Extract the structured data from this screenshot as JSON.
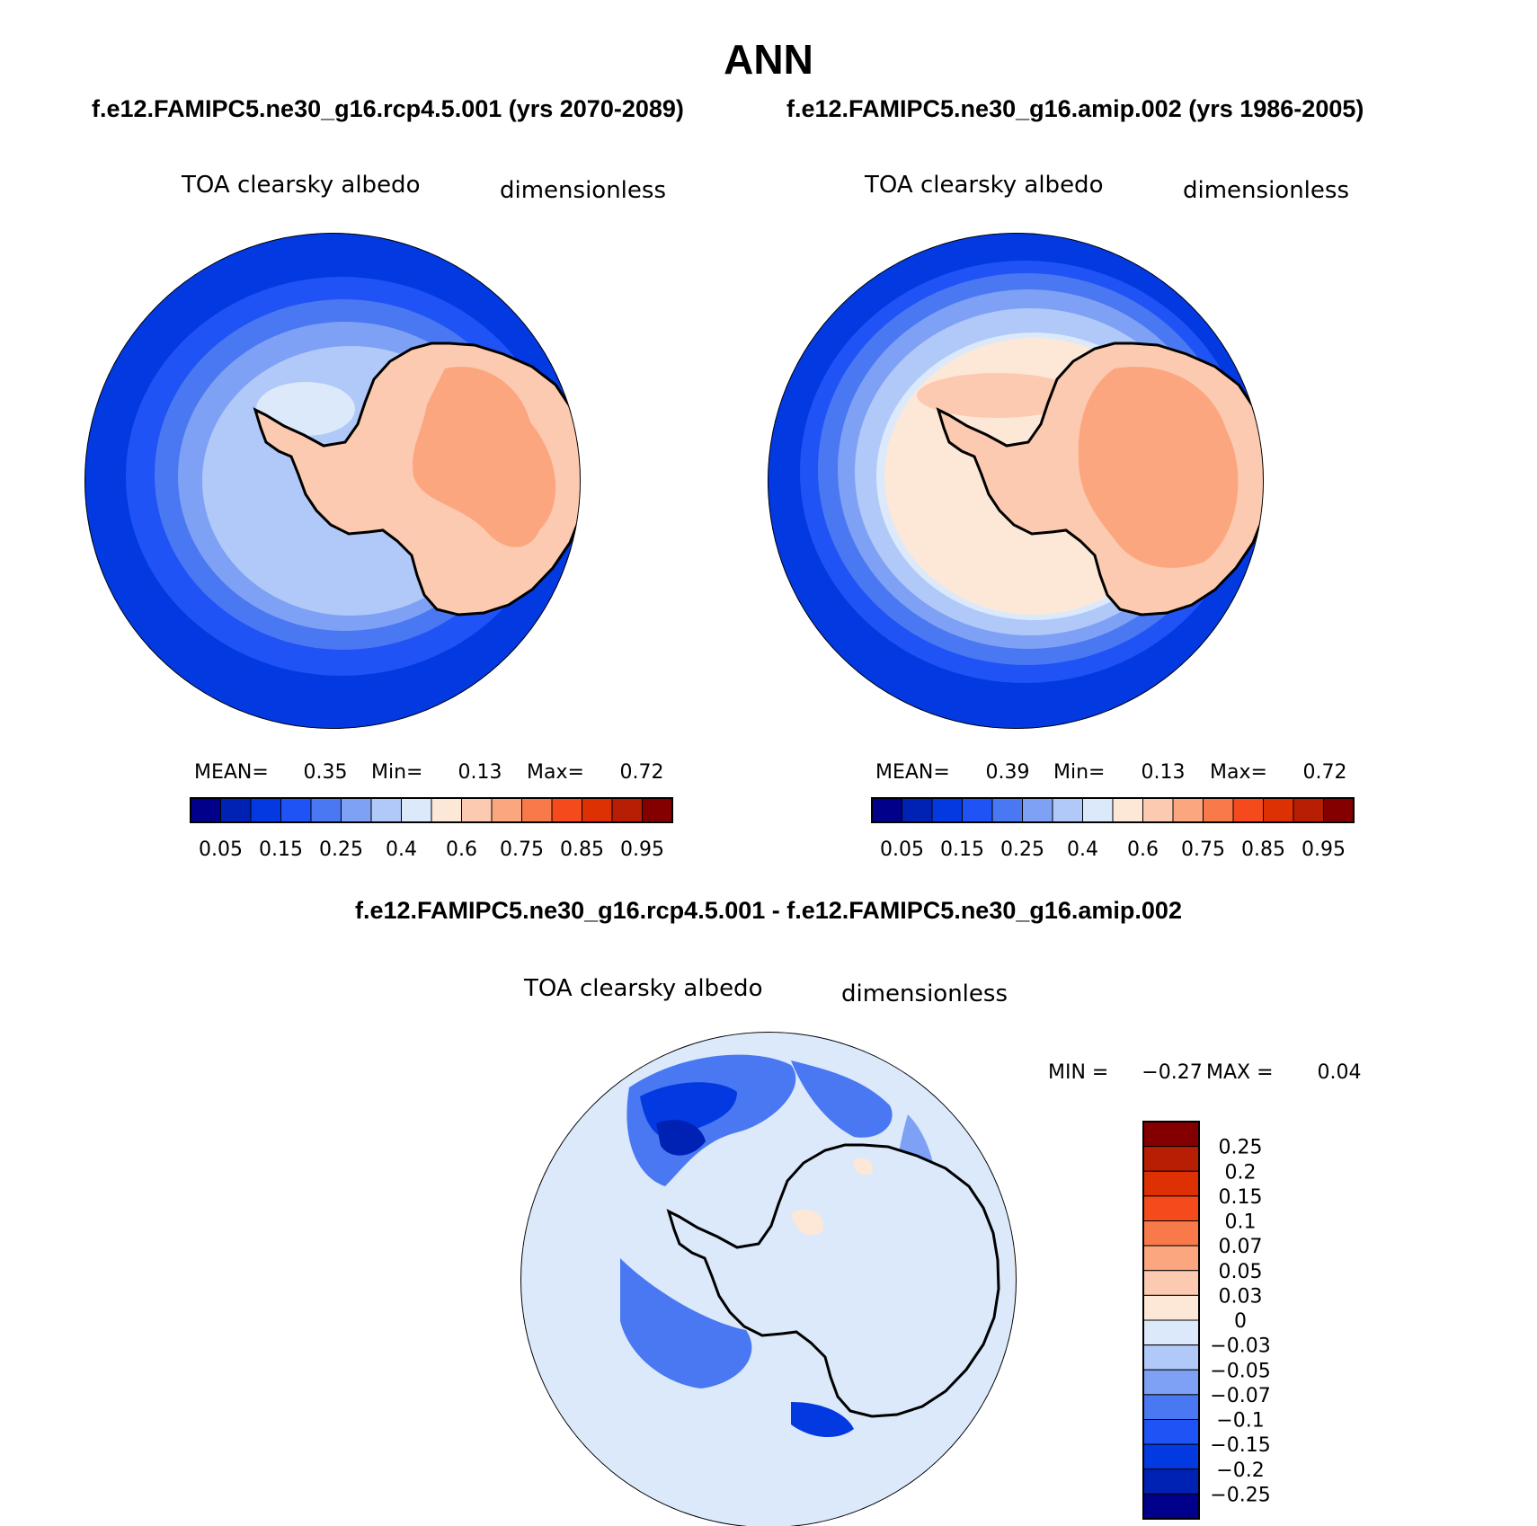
{
  "title": "ANN",
  "case_title": "f.e12.FAMIPC5.ne30_g16.rcp4.5.001 (yrs 2070-2089)",
  "control_title": "f.e12.FAMIPC5.ne30_g16.amip.002 (yrs 1986-2005)",
  "diff_title": "f.e12.FAMIPC5.ne30_g16.rcp4.5.001 - f.e12.FAMIPC5.ne30_g16.amip.002",
  "variable": "TOA clearsky albedo",
  "units": "dimensionless",
  "panels": [
    {
      "id": "case",
      "stats": {
        "mean_label": "MEAN=",
        "mean": "0.35",
        "min_label": "Min=",
        "min": "0.13",
        "max_label": "Max=",
        "max": "0.72"
      }
    },
    {
      "id": "control",
      "stats": {
        "mean_label": "MEAN=",
        "mean": "0.39",
        "min_label": "Min=",
        "min": "0.13",
        "max_label": "Max=",
        "max": "0.72"
      }
    },
    {
      "id": "diff",
      "stats": {
        "min_label": "MIN =",
        "min": "−0.27",
        "max_label": "MAX =",
        "max": "0.04"
      }
    }
  ],
  "colorbar_abs": {
    "colors": [
      "#00008b",
      "#0022b4",
      "#0339e0",
      "#1f53f5",
      "#4a78f2",
      "#7ea1f5",
      "#b1c9f8",
      "#dbe9fb",
      "#fde8d8",
      "#fccab0",
      "#fba67e",
      "#f87a4b",
      "#f54a1c",
      "#dd3104",
      "#b81e04",
      "#840000"
    ],
    "labels": [
      "0.05",
      "0.15",
      "0.25",
      "0.4",
      "0.6",
      "0.75",
      "0.85",
      "0.95"
    ]
  },
  "colorbar_diff": {
    "colors": [
      "#840000",
      "#b81e04",
      "#dd3104",
      "#f54a1c",
      "#f87a4b",
      "#fba67e",
      "#fccab0",
      "#fde8d8",
      "#dbe9fb",
      "#b1c9f8",
      "#7ea1f5",
      "#4a78f2",
      "#1f53f5",
      "#0339e0",
      "#0022b4",
      "#00008b"
    ],
    "labels": [
      "0.25",
      "0.2",
      "0.15",
      "0.1",
      "0.07",
      "0.05",
      "0.03",
      "0",
      "−0.03",
      "−0.05",
      "−0.07",
      "−0.1",
      "−0.15",
      "−0.2",
      "−0.25"
    ]
  }
}
